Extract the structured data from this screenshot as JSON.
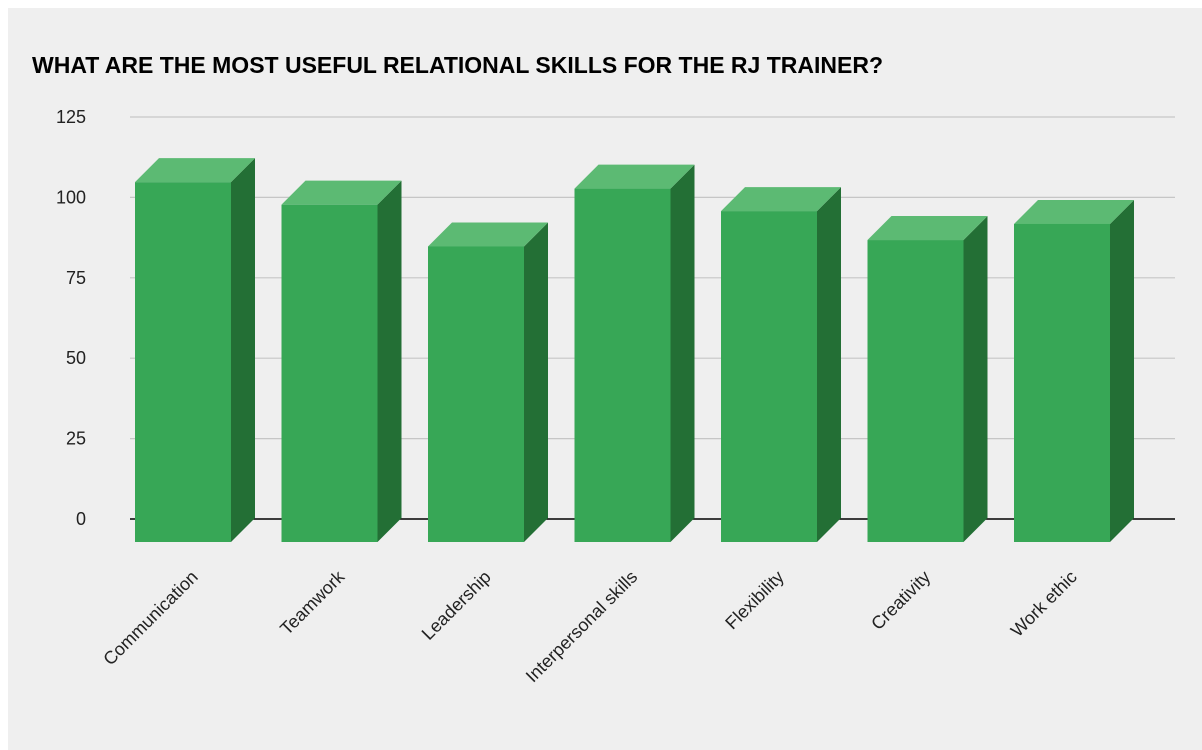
{
  "chart_data": {
    "type": "bar",
    "title": "WHAT ARE THE MOST USEFUL RELATIONAL SKILLS FOR THE RJ TRAINER?",
    "xlabel": "",
    "ylabel": "",
    "categories": [
      "Communication",
      "Teamwork",
      "Leadership",
      "Interpersonal skills",
      "Flexibility",
      "Creativity",
      "Work ethic"
    ],
    "values": [
      115,
      108,
      95,
      113,
      106,
      97,
      102
    ],
    "ylim": [
      0,
      125
    ],
    "yticks": [
      "0",
      "25",
      "50",
      "75",
      "100",
      "125"
    ],
    "grid": true,
    "legend": "none",
    "style": "3d",
    "colors": {
      "front": "#37a756",
      "top": "#5cba73",
      "side": "#236f35",
      "grid": "#c6c6c6",
      "baseline": "#000000",
      "background": "#efefef"
    }
  }
}
